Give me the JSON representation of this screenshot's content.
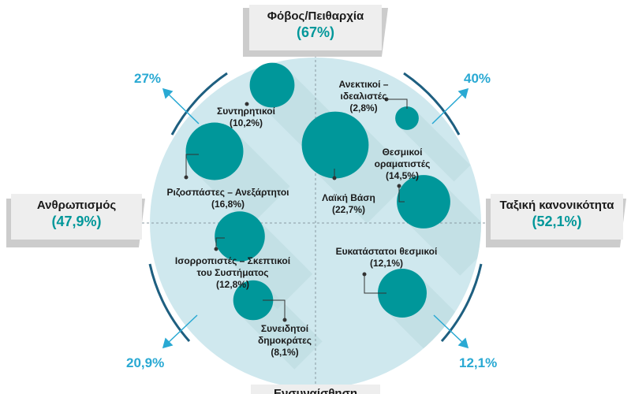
{
  "colors": {
    "teal": "#00979a",
    "circle_fill": "#cfe8ee",
    "accent": "#29a9d3",
    "dark_line": "#1e5f80",
    "box_fill": "#eeeeee",
    "box_shadow": "#cccccc",
    "text": "#1a1a1a"
  },
  "axes": {
    "top": {
      "title": "Φόβος/Πειθαρχία",
      "pct": "(67%)"
    },
    "left": {
      "title": "Ανθρωπισμός",
      "pct": "(47,9%)"
    },
    "right": {
      "title": "Ταξική κανονικότητα",
      "pct": "(52,1%)"
    },
    "bottom": {
      "title": "Ενσυναίσθηση"
    }
  },
  "quadrants": {
    "top_left": "27%",
    "top_right": "40%",
    "bottom_left": "20,9%",
    "bottom_right": "12,1%"
  },
  "segments": [
    {
      "name": "Συντηρητικοί",
      "pct": "(10,2%)",
      "value": 10.2
    },
    {
      "name": "Ανεκτικοί – ιδεαλιστές",
      "pct": "(2,8%)",
      "value": 2.8
    },
    {
      "name": "Ριζοσπάστες – Ανεξάρτητοι",
      "pct": "(16,8%)",
      "value": 16.8
    },
    {
      "name": "Λαϊκή Βάση",
      "pct": "(22,7%)",
      "value": 22.7
    },
    {
      "name": "Θεσμικοί οραματιστές",
      "pct": "(14,5%)",
      "value": 14.5
    },
    {
      "name": "Ισορροπιστές – Σκεπτικοί του Συστήματος",
      "pct": "(12,8%)",
      "value": 12.8
    },
    {
      "name": "Ευκατάστατοι θεσμικοί",
      "pct": "(12,1%)",
      "value": 12.1
    },
    {
      "name": "Συνειδητοί δημοκράτες",
      "pct": "(8,1%)",
      "value": 8.1
    }
  ]
}
